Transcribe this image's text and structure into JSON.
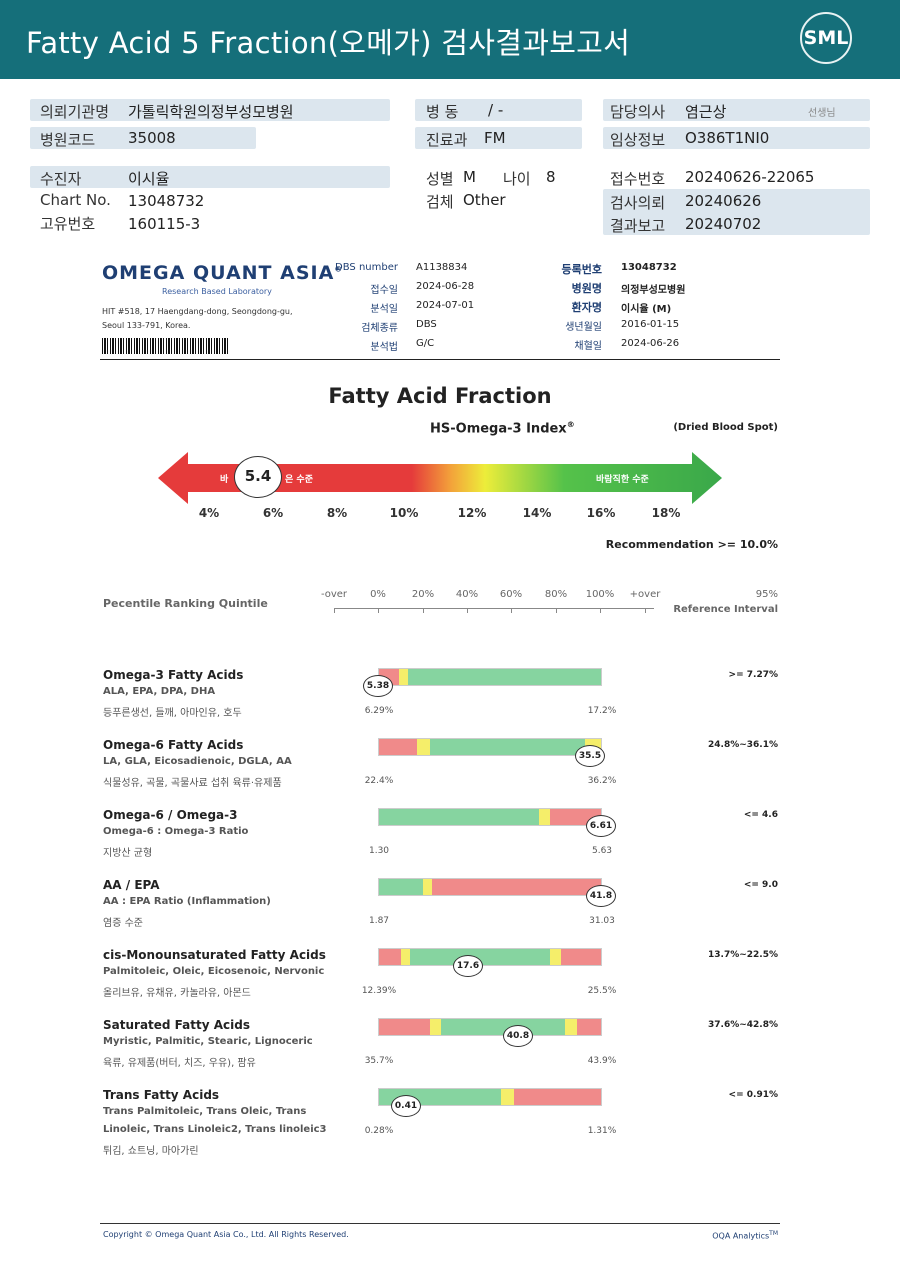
{
  "header": {
    "title": "Fatty Acid 5 Fraction(오메가) 검사결과보고서",
    "logo_text": "SML"
  },
  "info": {
    "institution_label": "의뢰기관명",
    "institution": "가톨릭학원의정부성모병원",
    "ward_label": "병 동",
    "ward": "/ -",
    "doctor_label": "담당의사",
    "doctor": "염근상",
    "doctor_suffix": "선생님",
    "hospital_code_label": "병원코드",
    "hospital_code": "35008",
    "department_label": "진료과",
    "department": "FM",
    "clinical_label": "임상정보",
    "clinical": "O386T1NI0",
    "patient_label": "수진자",
    "patient": "이시율",
    "sex_label": "성별",
    "sex": "M",
    "age_label": "나이",
    "age": "8",
    "receipt_no_label": "접수번호",
    "receipt_no": "20240626-22065",
    "chart_label": "Chart No.",
    "chart_no": "13048732",
    "specimen_label": "검체",
    "specimen": "Other",
    "request_label": "검사의뢰",
    "request_date": "20240626",
    "unique_label": "고유번호",
    "unique_no": "160115-3",
    "report_label": "결과보고",
    "report_date": "20240702"
  },
  "oqa": {
    "logo": "OMEGA QUANT ASIA",
    "registered": "®",
    "subtitle": "Research Based Laboratory",
    "address1": "HIT #518, 17 Haengdang-dong, Seongdong-gu,",
    "address2": "Seoul 133-791, Korea.",
    "fields_left": [
      {
        "k": "DBS number",
        "v": "A1138834"
      },
      {
        "k": "접수일",
        "v": "2024-06-28"
      },
      {
        "k": "분석일",
        "v": "2024-07-01"
      },
      {
        "k": "검체종류",
        "v": "DBS"
      },
      {
        "k": "분석법",
        "v": "G/C"
      }
    ],
    "fields_right": [
      {
        "k": "등록번호",
        "v": "13048732",
        "bold": true
      },
      {
        "k": "병원명",
        "v": "의정부성모병원",
        "bold": true
      },
      {
        "k": "환자명",
        "v": "이시율 (M)",
        "bold": true
      },
      {
        "k": "생년월일",
        "v": "2016-01-15",
        "bold": false
      },
      {
        "k": "채혈일",
        "v": "2024-06-26",
        "bold": false
      }
    ]
  },
  "index": {
    "section_title": "Fatty Acid Fraction",
    "title": "HS-Omega-3 Index",
    "title_mark": "®",
    "sample": "(Dried Blood Spot)",
    "value": "5.4",
    "left_text_a": "바",
    "left_text_b": "은 수준",
    "right_text": "바람직한 수준",
    "scale": [
      "4%",
      "6%",
      "8%",
      "10%",
      "12%",
      "14%",
      "16%",
      "18%"
    ],
    "recommendation": "Recommendation  >= 10.0%"
  },
  "ranking": {
    "title": "Pecentile Ranking Quintile",
    "scale": [
      "-over",
      "0%",
      "20%",
      "40%",
      "60%",
      "80%",
      "100%",
      "+over"
    ],
    "ref_top": "95%",
    "ref_bottom": "Reference Interval"
  },
  "rows": [
    {
      "name": "Omega-3 Fatty Acids",
      "sub": "ALA, EPA, DPA, DHA",
      "kr": "등푸른생선, 들깨, 아마인유, 호두",
      "min": "6.29%",
      "max": "17.2%",
      "value": "5.38",
      "ref": ">= 7.27%"
    },
    {
      "name": "Omega-6 Fatty Acids",
      "sub": "LA, GLA, Eicosadienoic, DGLA, AA",
      "kr": "식물성유, 곡물, 곡물사료 섭취 육류·유제품",
      "min": "22.4%",
      "max": "36.2%",
      "value": "35.5",
      "ref": "24.8%~36.1%"
    },
    {
      "name": "Omega-6 / Omega-3",
      "sub": "Omega-6 : Omega-3 Ratio",
      "kr": "지방산 균형",
      "min": "1.30",
      "max": "5.63",
      "value": "6.61",
      "ref": "<= 4.6"
    },
    {
      "name": "AA / EPA",
      "sub": "AA : EPA Ratio (Inflammation)",
      "kr": "염증 수준",
      "min": "1.87",
      "max": "31.03",
      "value": "41.8",
      "ref": "<= 9.0"
    },
    {
      "name": "cis-Monounsaturated Fatty Acids",
      "sub": "Palmitoleic, Oleic, Eicosenoic, Nervonic",
      "kr": "올리브유, 유채유, 카놀라유, 아몬드",
      "min": "12.39%",
      "max": "25.5%",
      "value": "17.6",
      "ref": "13.7%~22.5%"
    },
    {
      "name": "Saturated Fatty Acids",
      "sub": "Myristic, Palmitic, Stearic, Lignoceric",
      "kr": "육류, 유제품(버터, 치즈, 우유), 팜유",
      "min": "35.7%",
      "max": "43.9%",
      "value": "40.8",
      "ref": "37.6%~42.8%"
    },
    {
      "name": "Trans Fatty Acids",
      "sub": "Trans Palmitoleic, Trans Oleic, Trans",
      "sub2": "Linoleic, Trans Linoleic2, Trans linoleic3",
      "kr": "튀김, 쇼트닝, 마아가린",
      "min": "0.28%",
      "max": "1.31%",
      "value": "0.41",
      "ref": "<= 0.91%"
    }
  ],
  "colors": {
    "red": "#f08a8a",
    "yellow": "#f5ee6a",
    "green": "#86d4a0",
    "teal": "#156f7a",
    "navy": "#1f3f73"
  },
  "footer": {
    "copyright": "Copyright © Omega Quant Asia Co., Ltd.  All Rights Reserved.",
    "analytics": "OQA Analytics",
    "tm": "TM"
  }
}
